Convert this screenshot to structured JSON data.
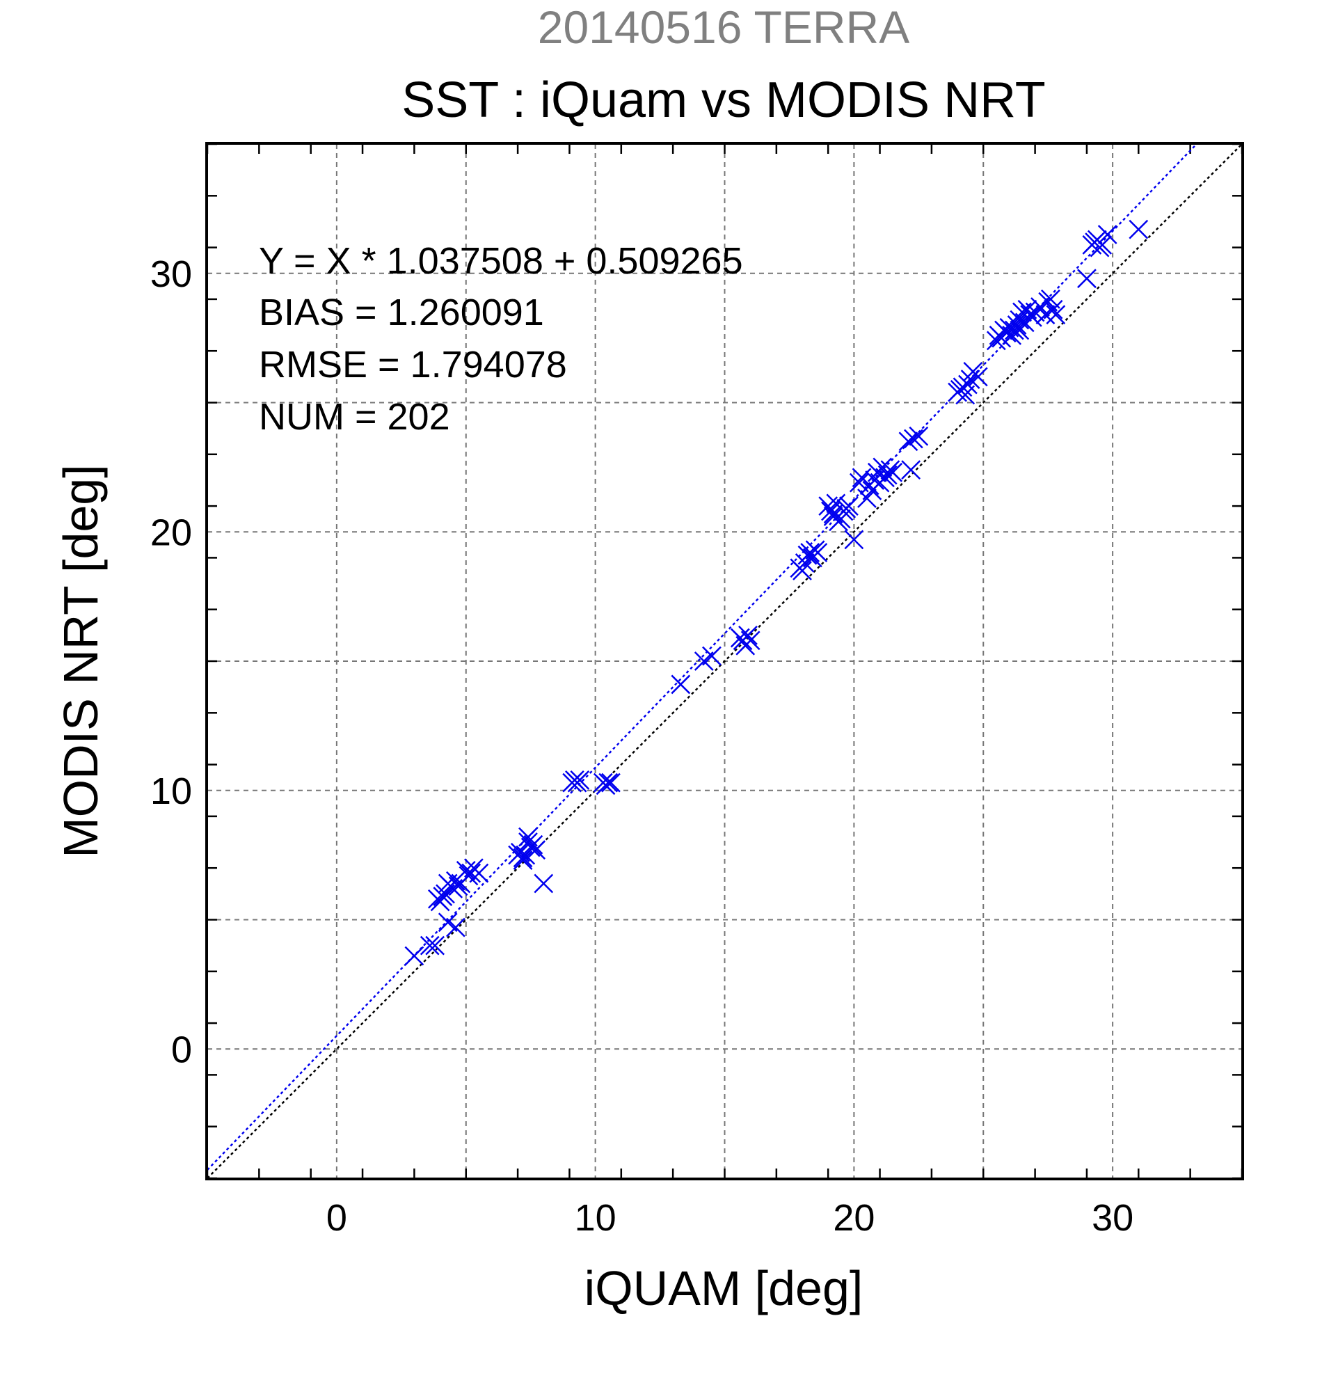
{
  "chart_data": {
    "type": "scatter",
    "title": "SST : iQuam vs MODIS NRT",
    "subtitle": "20140516 TERRA",
    "xlabel": "iQUAM [deg]",
    "ylabel": "MODIS NRT [deg]",
    "xlim": [
      -5,
      35
    ],
    "ylim": [
      -5,
      35
    ],
    "xticks": [
      0,
      10,
      20,
      30
    ],
    "yticks": [
      0,
      10,
      20,
      30
    ],
    "grid": true,
    "stats": [
      "Y = X * 1.037508 + 0.509265",
      "BIAS = 1.260091",
      "RMSE = 1.794078",
      "NUM = 202"
    ],
    "fit": {
      "slope": 1.037508,
      "intercept": 0.509265
    },
    "colors": {
      "points": "#0000ee",
      "fit_line": "#0000ee",
      "identity_line": "#000000",
      "grid": "#777777",
      "subtitle": "#808080"
    },
    "x": [
      3.0,
      3.6,
      3.8,
      3.9,
      4.0,
      4.1,
      4.2,
      4.3,
      4.4,
      4.5,
      4.6,
      4.7,
      4.8,
      5.0,
      5.1,
      5.2,
      5.3,
      5.5,
      4.3,
      4.6,
      7.0,
      7.1,
      7.2,
      7.3,
      7.4,
      7.5,
      7.6,
      7.7,
      7.2,
      7.4,
      8.0,
      9.1,
      9.2,
      9.3,
      9.4,
      10.3,
      10.4,
      10.5,
      10.6,
      13.3,
      14.2,
      14.5,
      15.6,
      15.7,
      15.8,
      15.9,
      16.0,
      17.9,
      18.0,
      18.1,
      18.2,
      18.3,
      18.4,
      18.5,
      18.6,
      19.0,
      19.1,
      19.2,
      19.3,
      19.4,
      19.5,
      19.6,
      19.7,
      19.2,
      19.8,
      20.0,
      20.2,
      20.3,
      20.5,
      20.6,
      20.8,
      20.9,
      21.0,
      21.1,
      21.2,
      21.3,
      21.4,
      20.7,
      21.5,
      22.1,
      22.3,
      22.5,
      22.2,
      24.0,
      24.1,
      24.2,
      24.3,
      24.4,
      24.5,
      24.6,
      24.8,
      25.5,
      25.6,
      25.7,
      25.8,
      25.9,
      26.0,
      26.1,
      26.2,
      26.3,
      26.4,
      26.5,
      26.6,
      26.7,
      26.8,
      26.9,
      27.0,
      27.2,
      27.4,
      27.5,
      27.6,
      27.7,
      26.4,
      27.8,
      29.2,
      29.3,
      29.4,
      29.5,
      29.6,
      29.8,
      29.0,
      31.0
    ],
    "y": [
      3.6,
      4.0,
      4.0,
      5.8,
      5.7,
      5.9,
      6.0,
      6.4,
      6.3,
      6.2,
      6.5,
      6.3,
      6.4,
      6.9,
      6.7,
      6.8,
      7.0,
      6.8,
      4.9,
      4.7,
      7.5,
      7.6,
      7.4,
      7.5,
      8.2,
      7.8,
      7.9,
      7.7,
      7.3,
      8.0,
      6.4,
      10.3,
      10.4,
      10.3,
      10.4,
      10.3,
      10.2,
      10.3,
      10.3,
      14.1,
      15.0,
      15.2,
      15.9,
      15.8,
      15.6,
      16.0,
      15.8,
      18.6,
      18.5,
      18.8,
      19.1,
      19.2,
      19.0,
      19.3,
      19.2,
      21.0,
      20.8,
      20.6,
      21.1,
      20.4,
      20.5,
      20.8,
      20.9,
      20.7,
      21.0,
      19.7,
      21.9,
      22.1,
      21.3,
      21.8,
      22.0,
      22.3,
      21.9,
      22.5,
      22.1,
      22.2,
      22.4,
      21.6,
      22.3,
      23.5,
      23.6,
      23.7,
      22.4,
      25.4,
      25.5,
      25.6,
      25.3,
      25.7,
      25.9,
      26.2,
      26.0,
      27.4,
      27.6,
      27.5,
      27.8,
      27.7,
      27.9,
      27.6,
      27.8,
      28.0,
      28.2,
      28.5,
      28.1,
      28.6,
      28.4,
      28.3,
      28.5,
      28.7,
      28.4,
      28.9,
      29.0,
      28.6,
      27.8,
      28.4,
      31.1,
      31.2,
      31.3,
      31.0,
      31.1,
      31.5,
      29.8,
      31.7
    ]
  }
}
